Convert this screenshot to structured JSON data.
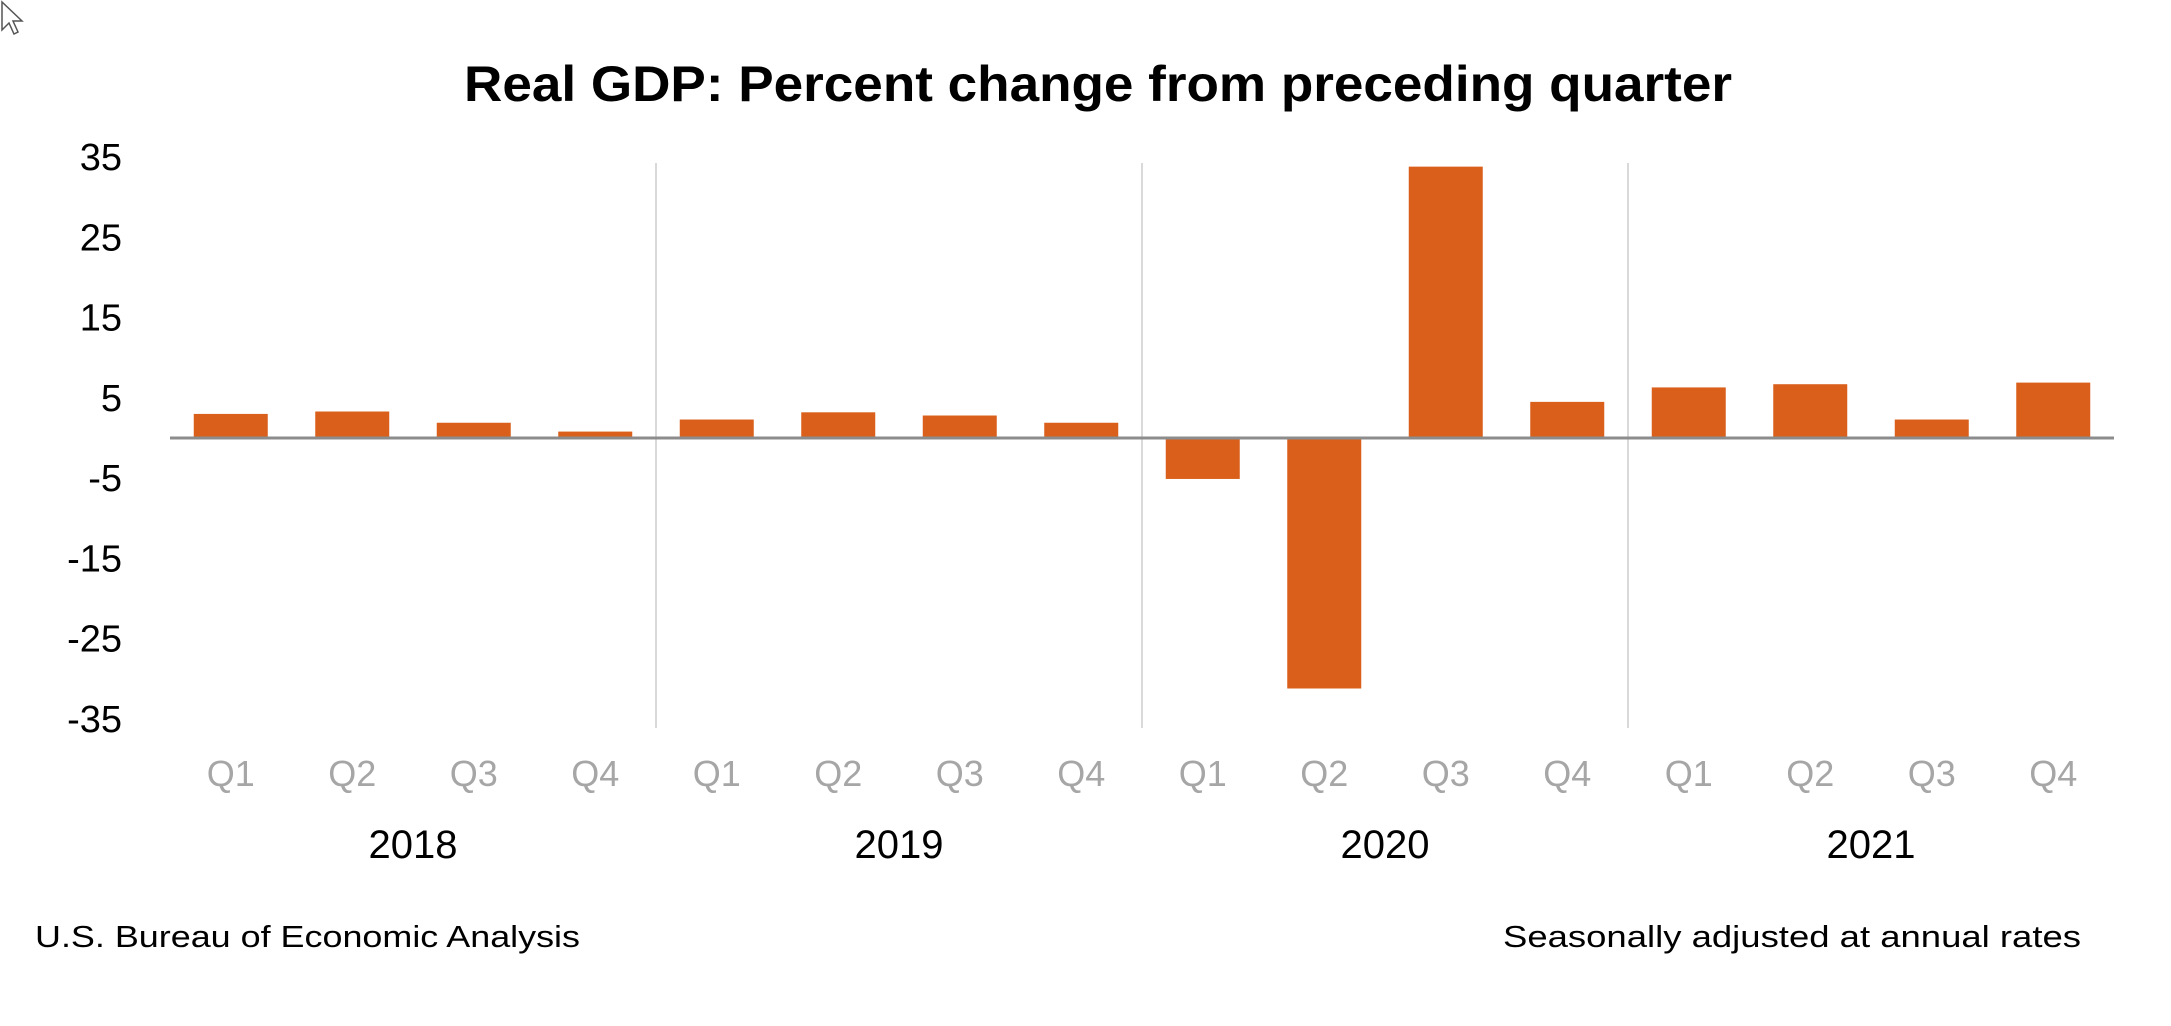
{
  "chart_data": {
    "type": "bar",
    "title": "Real GDP:  Percent change from preceding quarter",
    "xlabel": "",
    "ylabel": "",
    "ylim": [
      -35,
      35
    ],
    "yticks": [
      "35",
      "25",
      "15",
      "5",
      "-5",
      "-15",
      "-25",
      "-35"
    ],
    "ytick_values": [
      35,
      25,
      15,
      5,
      -5,
      -15,
      -25,
      -35
    ],
    "grid": false,
    "years": [
      "2018",
      "2019",
      "2020",
      "2021"
    ],
    "categories": [
      "Q1",
      "Q2",
      "Q3",
      "Q4",
      "Q1",
      "Q2",
      "Q3",
      "Q4",
      "Q1",
      "Q2",
      "Q3",
      "Q4",
      "Q1",
      "Q2",
      "Q3",
      "Q4"
    ],
    "values": [
      3.0,
      3.3,
      1.9,
      0.8,
      2.3,
      3.2,
      2.8,
      1.9,
      -5.1,
      -31.2,
      33.8,
      4.5,
      6.3,
      6.7,
      2.3,
      6.9
    ],
    "bar_color": "#d95f1a",
    "source": "U.S. Bureau of Economic Analysis",
    "note": "Seasonally adjusted at annual rates"
  },
  "colors": {
    "axis": "#8c8c8c",
    "separator": "#d9d9d9",
    "quarter_label": "#a6a6a6"
  },
  "icons": {
    "cursor": "mouse-pointer-icon"
  }
}
